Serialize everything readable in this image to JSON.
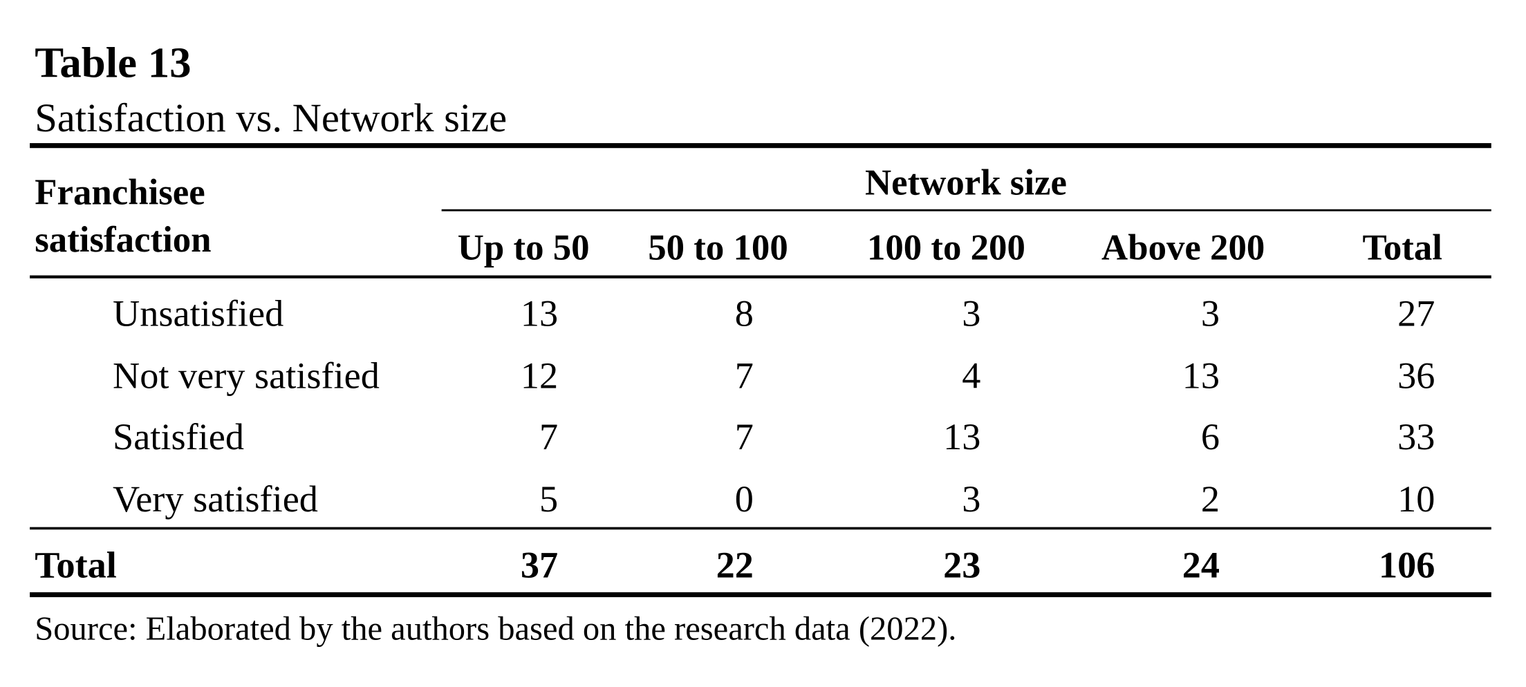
{
  "title": "Table 13",
  "subtitle": "Satisfaction vs. Network size",
  "table": {
    "stub_header": [
      "Franchisee",
      "satisfaction"
    ],
    "group_header": "Network size",
    "columns": [
      "Up to 50",
      "50 to 100",
      "100 to 200",
      "Above 200",
      "Total"
    ],
    "rows": [
      [
        "Unsatisfied",
        "13",
        "8",
        "3",
        "3",
        "27"
      ],
      [
        "Not very satisfied",
        "12",
        "7",
        "4",
        "13",
        "36"
      ],
      [
        "Satisfied",
        "7",
        "7",
        "13",
        "6",
        "33"
      ],
      [
        "Very satisfied",
        "5",
        "0",
        "3",
        "2",
        "10"
      ]
    ],
    "total_row": [
      "Total",
      "37",
      "22",
      "23",
      "24",
      "106"
    ]
  },
  "source": "Source: Elaborated by the authors based on the research data (2022)."
}
